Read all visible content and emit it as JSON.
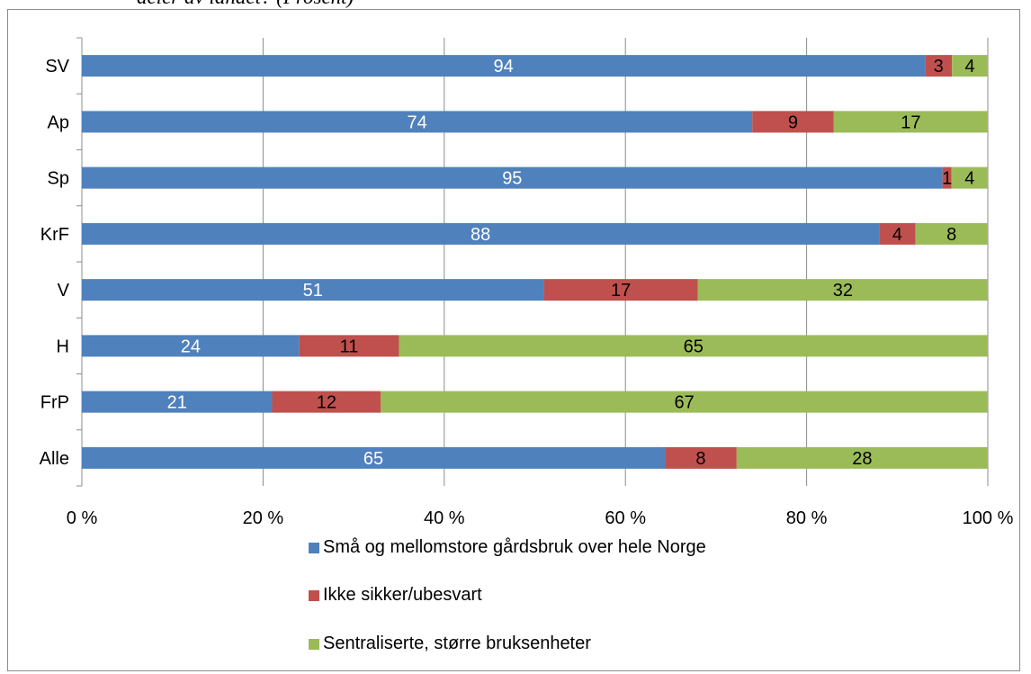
{
  "title_fragment": "deler av landet? (Prosent)",
  "chart_data": {
    "type": "bar",
    "orientation": "horizontal",
    "stacked": "percent",
    "categories": [
      "SV",
      "Ap",
      "Sp",
      "KrF",
      "V",
      "H",
      "FrP",
      "Alle"
    ],
    "series": [
      {
        "name": "Små og mellomstore gårdsbruk over hele Norge",
        "color": "#4f81bd",
        "label_color": "#ffffff",
        "values": [
          94,
          74,
          95,
          88,
          51,
          24,
          21,
          65
        ]
      },
      {
        "name": "Ikke sikker/ubesvart",
        "color": "#c0504d",
        "label_color": "#000000",
        "values": [
          3,
          9,
          1,
          4,
          17,
          11,
          12,
          8
        ]
      },
      {
        "name": "Sentraliserte, større bruksenheter",
        "color": "#9bbb59",
        "label_color": "#000000",
        "values": [
          4,
          17,
          4,
          8,
          32,
          65,
          67,
          28
        ]
      }
    ],
    "xlim": [
      0,
      100
    ],
    "xticks": [
      "0 %",
      "20 %",
      "40 %",
      "60 %",
      "80 %",
      "100 %"
    ],
    "grid": true,
    "legend_position": "bottom"
  }
}
